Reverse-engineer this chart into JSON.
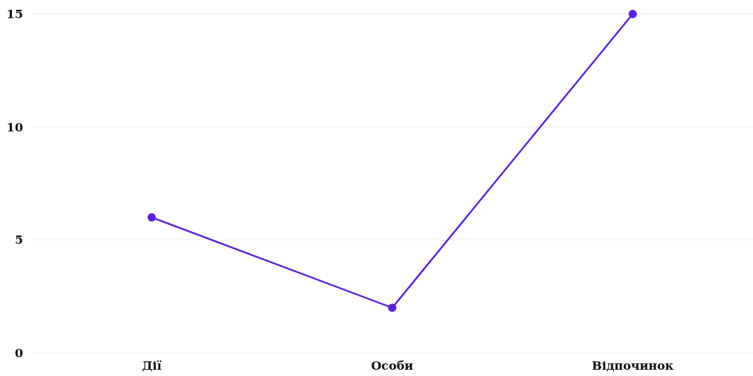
{
  "chart_data": {
    "type": "line",
    "categories": [
      "Дії",
      "Особи",
      "Відпочинок"
    ],
    "series": [
      {
        "color": "#5b1ee6",
        "values": [
          6,
          2,
          15
        ]
      }
    ],
    "ylim": [
      0,
      15
    ],
    "yticks": [
      0,
      5,
      10,
      15
    ],
    "grid": "y",
    "marker": "circle",
    "line_style": "solid"
  }
}
